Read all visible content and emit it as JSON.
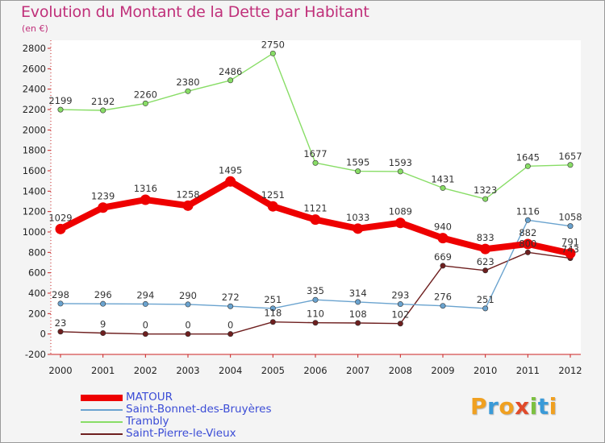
{
  "header": {
    "title": "Evolution du Montant de la Dette par Habitant",
    "subtitle": "(en €)"
  },
  "logo": {
    "letters": [
      "P",
      "r",
      "o",
      "x",
      "i",
      "t",
      "i"
    ],
    "colors": [
      "#f0a020",
      "#3a9ad8",
      "#f0a020",
      "#e04a2a",
      "#7cc040",
      "#3a9ad8",
      "#f0a020"
    ]
  },
  "chart_data": {
    "type": "line",
    "title": "Evolution du Montant de la Dette par Habitant",
    "ylabel": "(en €)",
    "xlabel": "",
    "x": [
      "2000",
      "2001",
      "2002",
      "2003",
      "2004",
      "2005",
      "2006",
      "2007",
      "2008",
      "2009",
      "2010",
      "2011",
      "2012"
    ],
    "ylim": [
      -200,
      2800
    ],
    "yticks": [
      -200,
      0,
      200,
      400,
      600,
      800,
      1000,
      1200,
      1400,
      1600,
      1800,
      2000,
      2200,
      2400,
      2600,
      2800
    ],
    "grid": false,
    "legend_position": "bottom-left",
    "series": [
      {
        "name": "MATOUR",
        "color": "#ee0000",
        "values": [
          1029,
          1239,
          1316,
          1258,
          1495,
          1251,
          1121,
          1033,
          1089,
          940,
          833,
          882,
          791
        ],
        "labels": [
          "1029",
          "1239",
          "1316",
          "1258",
          "1495",
          "1251",
          "1121",
          "1033",
          "1089",
          "940",
          "833",
          "882",
          "791"
        ]
      },
      {
        "name": "Saint-Bonnet-des-Bruyères",
        "color": "#6aa3cf",
        "values": [
          298,
          296,
          294,
          290,
          272,
          251,
          335,
          314,
          293,
          276,
          251,
          1116,
          1058
        ],
        "labels": [
          "298",
          "296",
          "294",
          "290",
          "272",
          "251",
          "335",
          "314",
          "293",
          "276",
          "251",
          "1116",
          "1058"
        ]
      },
      {
        "name": "Trambly",
        "color": "#88dd66",
        "values": [
          2199,
          2192,
          2260,
          2380,
          2486,
          2750,
          1677,
          1595,
          1593,
          1431,
          1323,
          1645,
          1657
        ],
        "labels": [
          "2199",
          "2192",
          "2260",
          "2380",
          "2486",
          "2750",
          "1677",
          "1595",
          "1593",
          "1431",
          "1323",
          "1645",
          "1657"
        ]
      },
      {
        "name": "Saint-Pierre-le-Vieux",
        "color": "#6e1f1f",
        "values": [
          23,
          9,
          0,
          0,
          0,
          118,
          110,
          108,
          102,
          669,
          623,
          800,
          743
        ],
        "labels": [
          "23",
          "9",
          "0",
          "0",
          "0",
          "118",
          "110",
          "108",
          "102",
          "669",
          "623",
          "800",
          "743"
        ]
      }
    ]
  }
}
